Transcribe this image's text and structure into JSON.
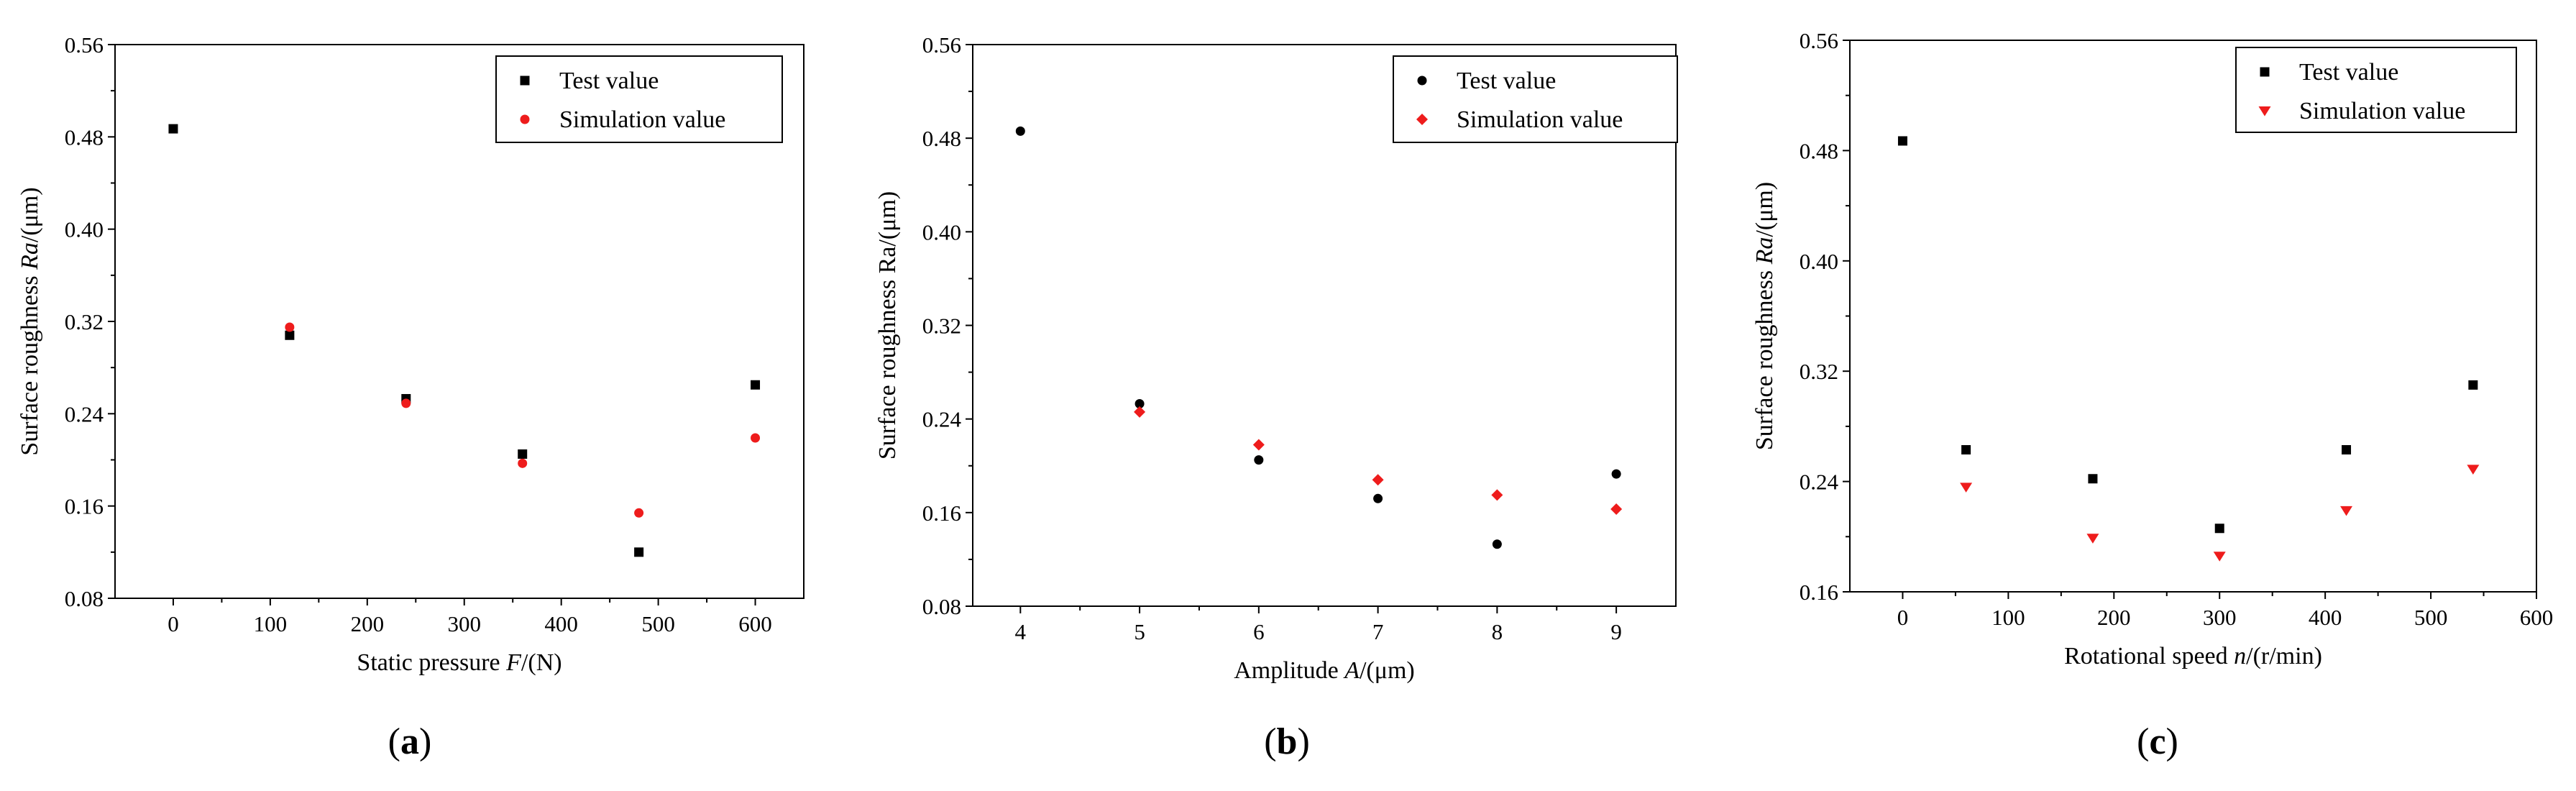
{
  "colors": {
    "test": "#000000",
    "sim": "#ee1c1c"
  },
  "chart_data": [
    {
      "type": "scatter",
      "panel_label": "(a)",
      "xlabel_prefix": "Static pressure ",
      "xlabel_var": "F",
      "xlabel_suffix": "/(N)",
      "ylabel_prefix": "Surface roughness ",
      "ylabel_var": "Ra",
      "ylabel_suffix": "/(μm)",
      "xlim": [
        -60,
        650
      ],
      "ylim": [
        0.08,
        0.56
      ],
      "xticks": [
        0,
        100,
        200,
        300,
        400,
        500,
        600
      ],
      "xtick_labels": [
        "0",
        "100",
        "200",
        "300",
        "400",
        "500",
        "600"
      ],
      "yticks": [
        0.08,
        0.16,
        0.24,
        0.32,
        0.4,
        0.48,
        0.56
      ],
      "ytick_labels": [
        "0.08",
        "0.16",
        "0.24",
        "0.32",
        "0.40",
        "0.48",
        "0.56"
      ],
      "legend_position": "top-right",
      "series": [
        {
          "name": "Test value",
          "marker": "square",
          "color": "#000000",
          "x": [
            0,
            120,
            240,
            360,
            480,
            600
          ],
          "y": [
            0.487,
            0.308,
            0.253,
            0.205,
            0.12,
            0.265
          ]
        },
        {
          "name": "Simulation value",
          "marker": "circle",
          "color": "#ee1c1c",
          "x": [
            120,
            240,
            360,
            480,
            600
          ],
          "y": [
            0.315,
            0.249,
            0.197,
            0.154,
            0.219
          ]
        }
      ]
    },
    {
      "type": "scatter",
      "panel_label": "(b)",
      "xlabel_prefix": "Amplitude ",
      "xlabel_var": "A",
      "xlabel_suffix": "/(μm)",
      "ylabel_prefix": "Surface roughness Ra/(μm)",
      "ylabel_var": "",
      "ylabel_suffix": "",
      "xlim": [
        3.6,
        9.5
      ],
      "ylim": [
        0.08,
        0.56
      ],
      "xticks": [
        4,
        5,
        6,
        7,
        8,
        9
      ],
      "xtick_labels": [
        "4",
        "5",
        "6",
        "7",
        "8",
        "9"
      ],
      "yticks": [
        0.08,
        0.16,
        0.24,
        0.32,
        0.4,
        0.48,
        0.56
      ],
      "ytick_labels": [
        "0.08",
        "0.16",
        "0.24",
        "0.32",
        "0.40",
        "0.48",
        "0.56"
      ],
      "legend_position": "top-right",
      "series": [
        {
          "name": "Test value",
          "marker": "circle",
          "color": "#000000",
          "x": [
            4,
            5,
            6,
            7,
            8,
            9
          ],
          "y": [
            0.486,
            0.253,
            0.205,
            0.172,
            0.133,
            0.193
          ]
        },
        {
          "name": "Simulation value",
          "marker": "diamond",
          "color": "#ee1c1c",
          "x": [
            5,
            6,
            7,
            8,
            9
          ],
          "y": [
            0.246,
            0.218,
            0.188,
            0.175,
            0.163
          ]
        }
      ]
    },
    {
      "type": "scatter",
      "panel_label": "(c)",
      "xlabel_prefix": "Rotational speed ",
      "xlabel_var": "n",
      "xlabel_suffix": "/(r/min)",
      "ylabel_prefix": "Surface roughness ",
      "ylabel_var": "Ra",
      "ylabel_suffix": "/(μm)",
      "xlim": [
        -50,
        600
      ],
      "ylim": [
        0.16,
        0.56
      ],
      "xticks": [
        0,
        100,
        200,
        300,
        400,
        500,
        600
      ],
      "xtick_labels": [
        "0",
        "100",
        "200",
        "300",
        "400",
        "500",
        "600"
      ],
      "yticks": [
        0.16,
        0.24,
        0.32,
        0.4,
        0.48,
        0.56
      ],
      "ytick_labels": [
        "0.16",
        "0.24",
        "0.32",
        "0.40",
        "0.48",
        "0.56"
      ],
      "legend_position": "top-right",
      "series": [
        {
          "name": "Test value",
          "marker": "square",
          "color": "#000000",
          "x": [
            0,
            60,
            180,
            300,
            420,
            540
          ],
          "y": [
            0.487,
            0.263,
            0.242,
            0.206,
            0.263,
            0.31
          ]
        },
        {
          "name": "Simulation value",
          "marker": "triangle-down",
          "color": "#ee1c1c",
          "x": [
            60,
            180,
            300,
            420,
            540
          ],
          "y": [
            0.236,
            0.199,
            0.186,
            0.219,
            0.249
          ]
        }
      ]
    }
  ]
}
